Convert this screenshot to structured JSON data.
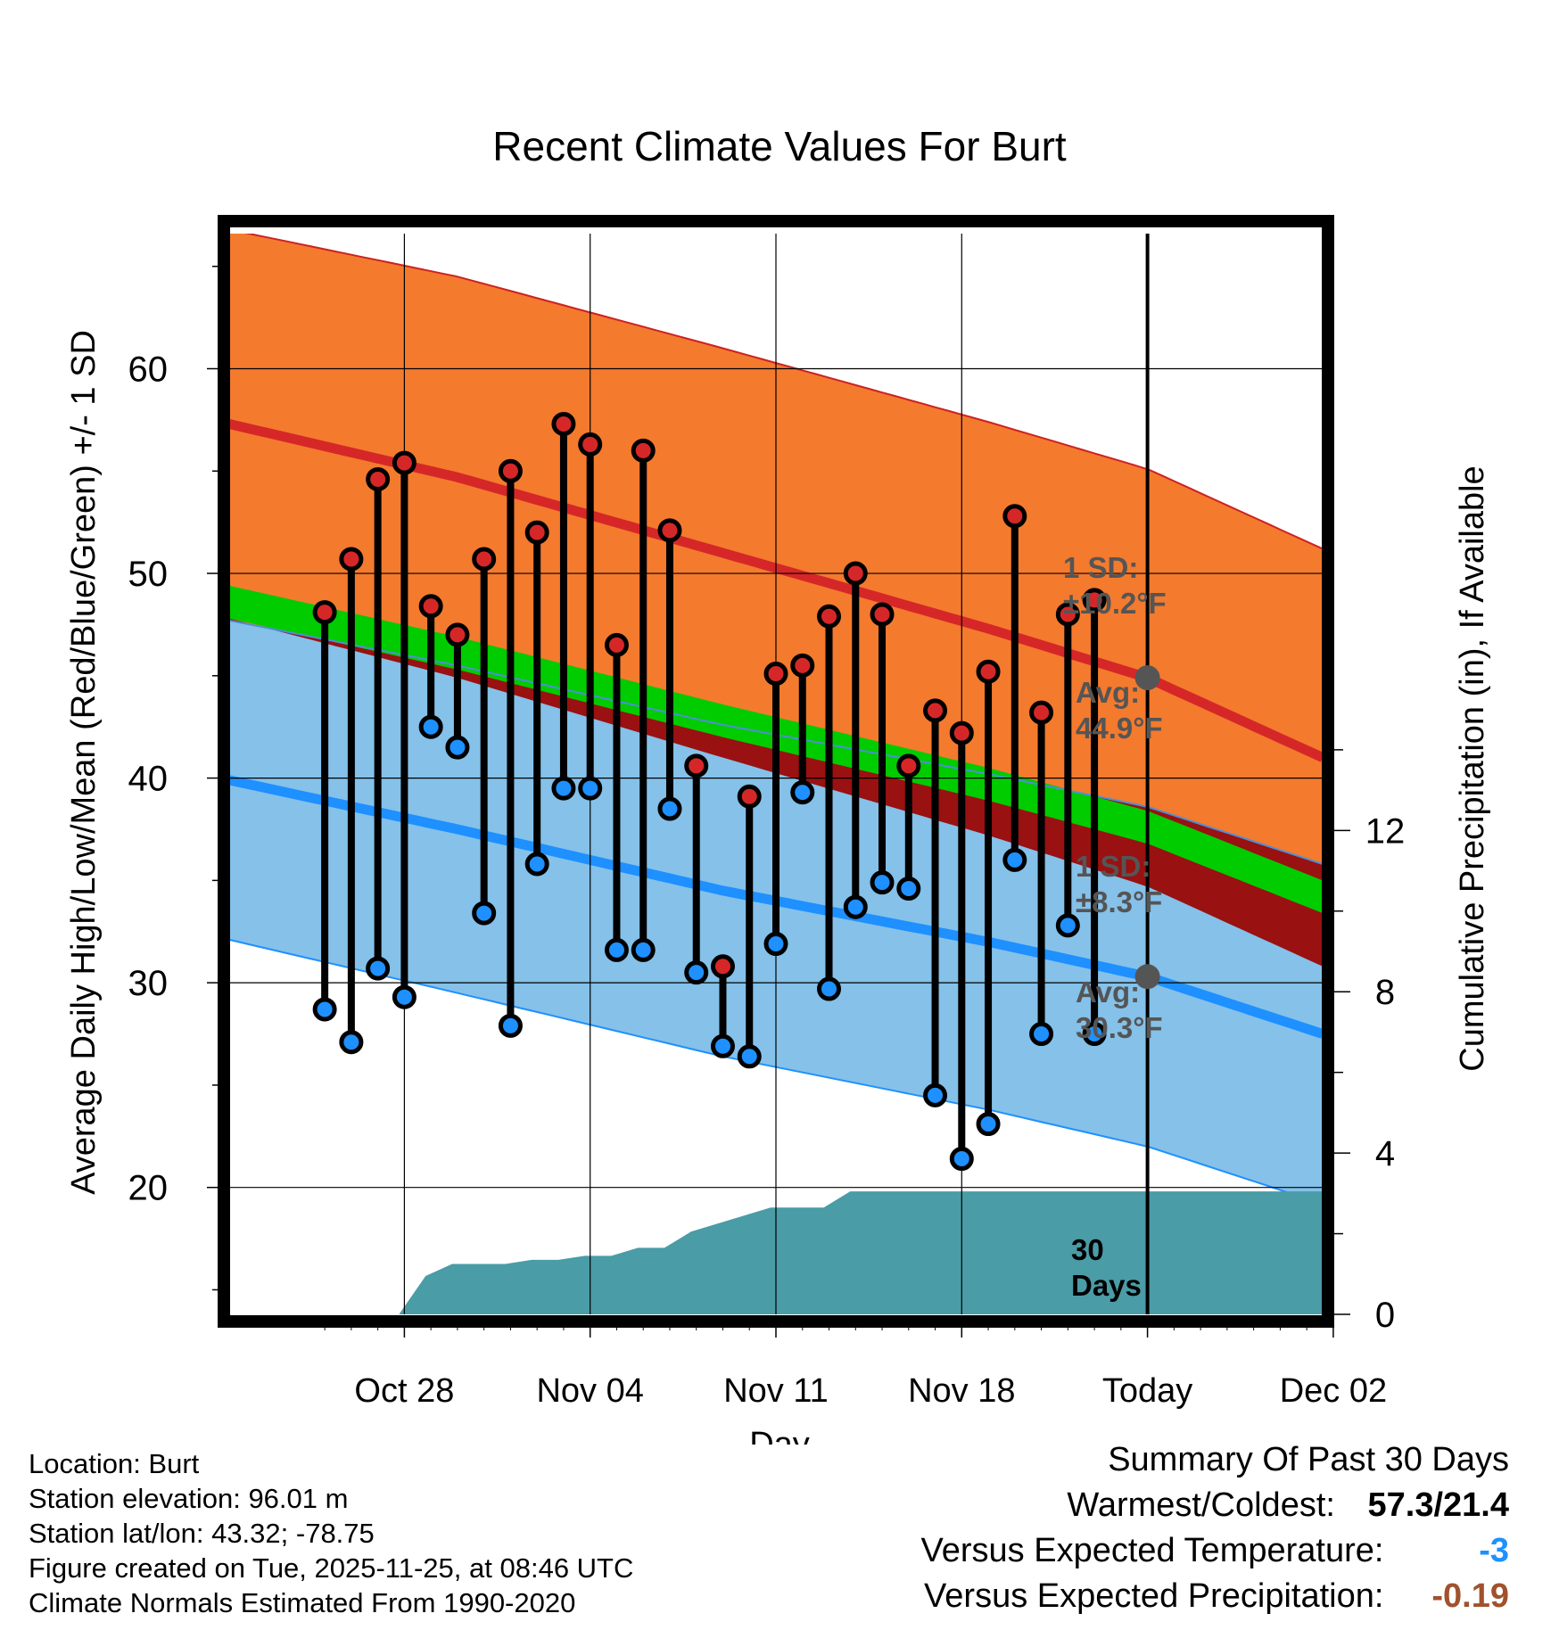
{
  "chart_data": {
    "type": "line",
    "title": "Recent Climate Values For Burt",
    "xlabel": "Day",
    "ylabel": "Average Daily High/Low/Mean (Red/Blue/Green) +/- 1 SD",
    "y2label": "Cumulative Precipitation (in), If Available",
    "xlim": [
      -3.6,
      37.6
    ],
    "ylim": [
      13.8,
      66.6
    ],
    "y2lim": [
      0,
      26.8
    ],
    "yticks": [
      20,
      30,
      40,
      50,
      60
    ],
    "y2ticks": [
      0,
      4,
      8,
      12
    ],
    "xticks": [
      {
        "day": 3,
        "label": "Oct 28"
      },
      {
        "day": 10,
        "label": "Nov 04"
      },
      {
        "day": 17,
        "label": "Nov 11"
      },
      {
        "day": 24,
        "label": "Nov 18"
      },
      {
        "day": 31,
        "label": "Today"
      },
      {
        "day": 38,
        "label": "Dec 02"
      }
    ],
    "today_day": 31,
    "normals": {
      "days": [
        -3.6,
        5,
        15,
        25,
        31,
        37.6
      ],
      "high_avg": [
        57.3,
        54.7,
        51.0,
        47.3,
        44.9,
        41.0
      ],
      "high_sd": [
        9.5,
        9.8,
        10.0,
        10.1,
        10.2,
        10.2
      ],
      "low_avg": [
        39.9,
        37.5,
        34.5,
        32.0,
        30.3,
        27.5
      ],
      "low_sd": [
        7.8,
        8.0,
        8.1,
        8.2,
        8.3,
        8.3
      ],
      "mean_avg": [
        48.6,
        46.1,
        42.8,
        39.7,
        37.6,
        34.2
      ]
    },
    "observed": [
      {
        "day": 0,
        "high": 48.1,
        "low": 28.7
      },
      {
        "day": 1,
        "high": 50.7,
        "low": 27.1
      },
      {
        "day": 2,
        "high": 54.6,
        "low": 30.7
      },
      {
        "day": 3,
        "high": 55.4,
        "low": 29.3
      },
      {
        "day": 4,
        "high": 48.4,
        "low": 42.5
      },
      {
        "day": 5,
        "high": 47.0,
        "low": 41.5
      },
      {
        "day": 6,
        "high": 50.7,
        "low": 33.4
      },
      {
        "day": 7,
        "high": 55.0,
        "low": 27.9
      },
      {
        "day": 8,
        "high": 52.0,
        "low": 35.8
      },
      {
        "day": 9,
        "high": 57.3,
        "low": 39.5
      },
      {
        "day": 10,
        "high": 56.3,
        "low": 39.5
      },
      {
        "day": 11,
        "high": 46.5,
        "low": 31.6
      },
      {
        "day": 12,
        "high": 56.0,
        "low": 31.6
      },
      {
        "day": 13,
        "high": 52.1,
        "low": 38.5
      },
      {
        "day": 14,
        "high": 40.6,
        "low": 30.5
      },
      {
        "day": 15,
        "high": 30.8,
        "low": 26.9
      },
      {
        "day": 16,
        "high": 39.1,
        "low": 26.4
      },
      {
        "day": 17,
        "high": 45.1,
        "low": 31.9
      },
      {
        "day": 18,
        "high": 45.5,
        "low": 39.3
      },
      {
        "day": 19,
        "high": 47.9,
        "low": 29.7
      },
      {
        "day": 20,
        "high": 50.0,
        "low": 33.7
      },
      {
        "day": 21,
        "high": 48.0,
        "low": 34.9
      },
      {
        "day": 22,
        "high": 40.6,
        "low": 34.6
      },
      {
        "day": 23,
        "high": 43.3,
        "low": 24.5
      },
      {
        "day": 24,
        "high": 42.2,
        "low": 21.4
      },
      {
        "day": 25,
        "high": 45.2,
        "low": 23.1
      },
      {
        "day": 26,
        "high": 52.8,
        "low": 36.0
      },
      {
        "day": 27,
        "high": 43.2,
        "low": 27.5
      },
      {
        "day": 28,
        "high": 48.0,
        "low": 32.8
      },
      {
        "day": 29,
        "high": 48.7,
        "low": 27.5
      }
    ],
    "precip_cumulative": {
      "days": [
        -3.6,
        1.8,
        2.8,
        3.8,
        4.8,
        5.8,
        6.8,
        7.8,
        8.8,
        9.8,
        10.8,
        11.8,
        12.8,
        13.8,
        14.8,
        15.8,
        16.8,
        17.8,
        18.8,
        19.8,
        20.8,
        21.8,
        22.8,
        37.6
      ],
      "values": [
        0,
        0,
        0,
        0.95,
        1.25,
        1.25,
        1.25,
        1.35,
        1.35,
        1.45,
        1.45,
        1.65,
        1.65,
        2.05,
        2.25,
        2.45,
        2.65,
        2.65,
        2.65,
        3.05,
        3.05,
        3.05,
        3.05,
        3.05
      ]
    },
    "annotations": {
      "high_sd_label": [
        "1 SD:",
        "±10.2°F"
      ],
      "high_avg_label": [
        "Avg:",
        "44.9°F"
      ],
      "low_sd_label": [
        "1 SD:",
        "±8.3°F"
      ],
      "low_avg_label": [
        "Avg:",
        "30.3°F"
      ],
      "days_label": [
        "30",
        "Days"
      ]
    },
    "colors": {
      "high_band": "#f47a2e",
      "high_line": "#d62728",
      "low_band": "#85c1e9",
      "low_line": "#1e90ff",
      "mean_band": "#00cc00",
      "overlap": "#991111",
      "precip": "#4a9ca6",
      "annotation": "#555555",
      "high_marker": "#d62728",
      "low_marker": "#1e90ff"
    }
  },
  "location": {
    "location_line": "Location: Burt",
    "elevation_line": "Station elevation: 96.01 m",
    "latlon_line": "Station lat/lon: 43.32; -78.75",
    "created_line": "Figure created on Tue, 2025-11-25, at 08:46 UTC",
    "normals_line": "Climate Normals Estimated From 1990-2020"
  },
  "summary": {
    "title": "Summary Of Past 30 Days",
    "warm_cold_label": "Warmest/Coldest:",
    "warm_cold_value": "57.3/21.4",
    "temp_label": "Versus Expected Temperature:",
    "temp_value": "-3",
    "temp_color": "#1e90ff",
    "precip_label": "Versus Expected Precipitation:",
    "precip_value": "-0.19",
    "precip_color": "#a0522d"
  }
}
